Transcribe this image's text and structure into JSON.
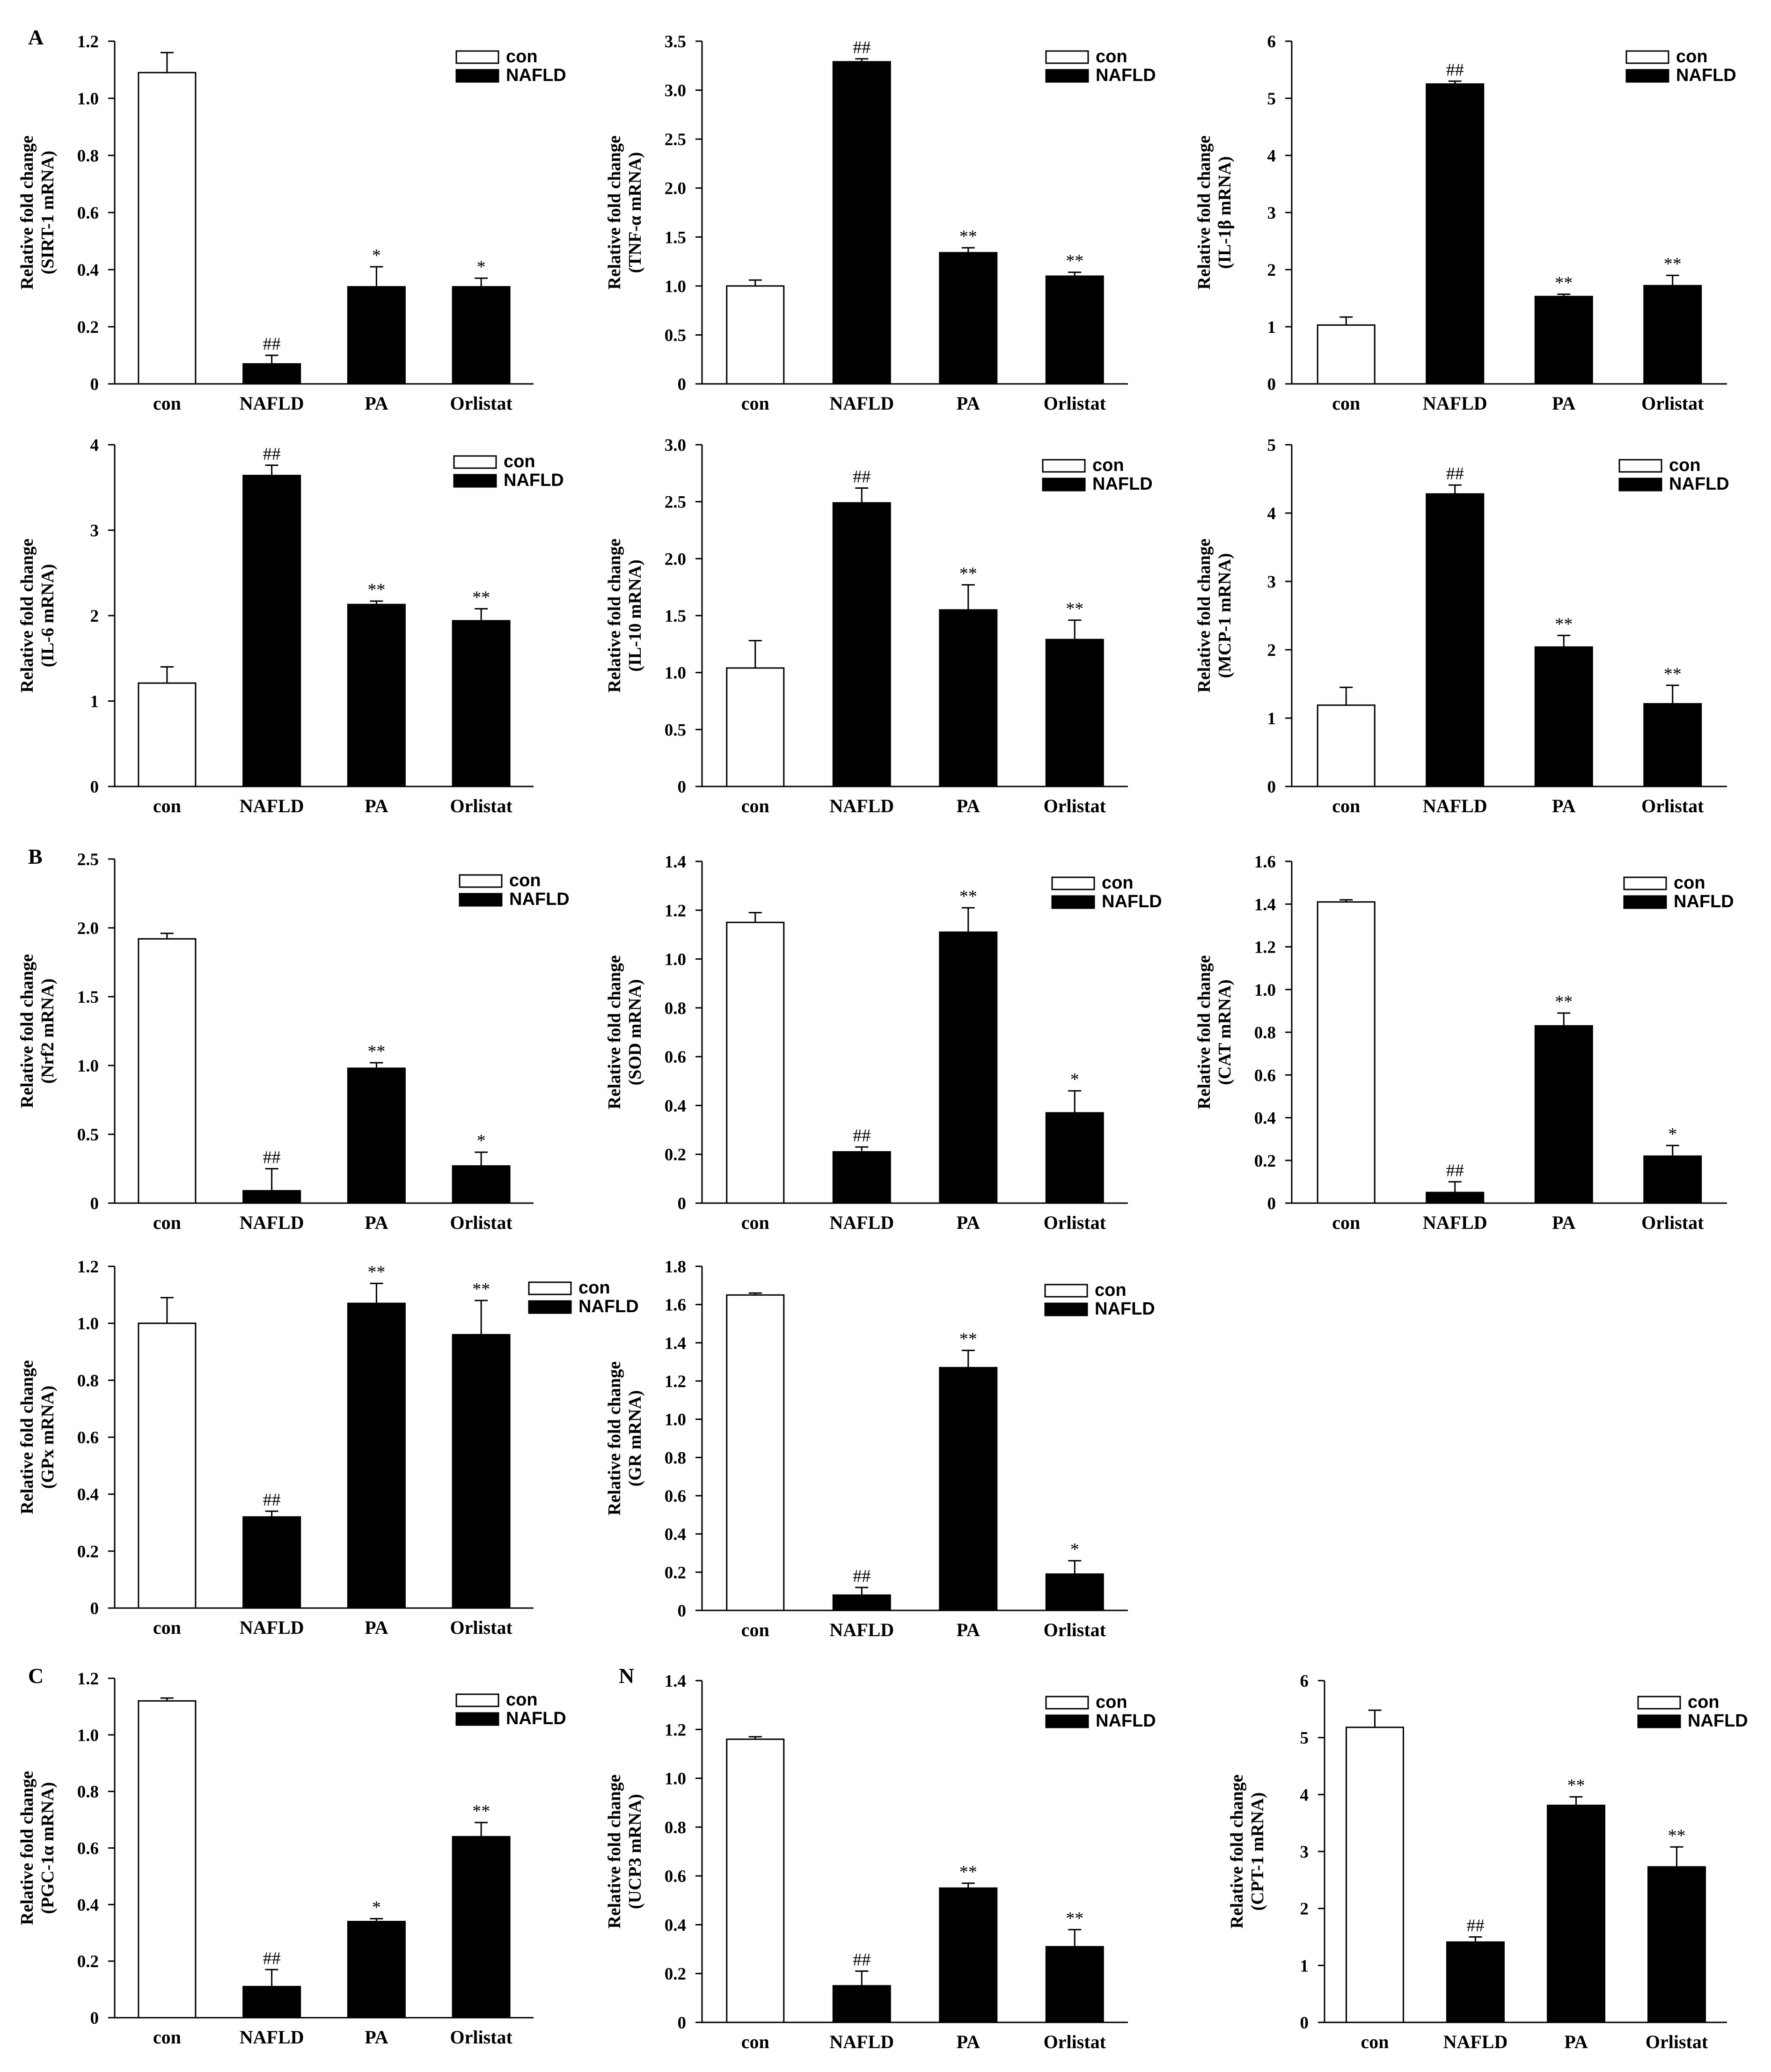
{
  "panel_letters": [
    "A",
    "B",
    "C",
    "N"
  ],
  "legend": {
    "control": "con",
    "disease": "NAFLD"
  },
  "colors": {
    "control_fill": "#ffffff",
    "treated_fill": "#000000",
    "stroke": "#000000"
  },
  "chart_data": [
    {
      "type": "bar",
      "title": "",
      "xlabel": "",
      "ylabel": [
        "Relative fold change",
        "(SIRT-1 mRNA)"
      ],
      "categories": [
        "con",
        "NAFLD",
        "PA",
        "Orlistat"
      ],
      "values": [
        1.09,
        0.07,
        0.34,
        0.34
      ],
      "errors": [
        0.07,
        0.03,
        0.07,
        0.03
      ],
      "significance": [
        "",
        "##",
        "*",
        "*"
      ],
      "ylim": [
        0,
        1.2
      ],
      "yticks": [
        "0",
        "0.2",
        "0.4",
        "0.6",
        "0.8",
        "1.0",
        "1.2"
      ]
    },
    {
      "type": "bar",
      "title": "",
      "xlabel": "",
      "ylabel": [
        "Relative fold change",
        "(TNF-α mRNA)"
      ],
      "categories": [
        "con",
        "NAFLD",
        "PA",
        "Orlistat"
      ],
      "values": [
        1.0,
        3.29,
        1.34,
        1.1
      ],
      "errors": [
        0.06,
        0.03,
        0.05,
        0.04
      ],
      "significance": [
        "",
        "##",
        "**",
        "**"
      ],
      "ylim": [
        0,
        3.5
      ],
      "yticks": [
        "0",
        "0.5",
        "1.0",
        "1.5",
        "2.0",
        "2.5",
        "3.0",
        "3.5"
      ]
    },
    {
      "type": "bar",
      "title": "",
      "xlabel": "",
      "ylabel": [
        "Relative fold change",
        "(IL-1β mRNA)"
      ],
      "categories": [
        "con",
        "NAFLD",
        "PA",
        "Orlistat"
      ],
      "values": [
        1.03,
        5.25,
        1.53,
        1.72
      ],
      "errors": [
        0.14,
        0.05,
        0.04,
        0.18
      ],
      "significance": [
        "",
        "##",
        "**",
        "**"
      ],
      "ylim": [
        0,
        6
      ],
      "yticks": [
        "0",
        "1",
        "2",
        "3",
        "4",
        "5",
        "6"
      ]
    },
    {
      "type": "bar",
      "title": "",
      "xlabel": "",
      "ylabel": [
        "Relative fold change",
        "(IL-6 mRNA)"
      ],
      "categories": [
        "con",
        "NAFLD",
        "PA",
        "Orlistat"
      ],
      "values": [
        1.21,
        3.64,
        2.13,
        1.94
      ],
      "errors": [
        0.19,
        0.12,
        0.04,
        0.14
      ],
      "significance": [
        "",
        "##",
        "**",
        "**"
      ],
      "ylim": [
        0,
        4
      ],
      "yticks": [
        "0",
        "1",
        "2",
        "3",
        "4"
      ]
    },
    {
      "type": "bar",
      "title": "",
      "xlabel": "",
      "ylabel": [
        "Relative fold change",
        "(IL-10 mRNA)"
      ],
      "categories": [
        "con",
        "NAFLD",
        "PA",
        "Orlistat"
      ],
      "values": [
        1.04,
        2.49,
        1.55,
        1.29
      ],
      "errors": [
        0.24,
        0.13,
        0.22,
        0.17
      ],
      "significance": [
        "",
        "##",
        "**",
        "**"
      ],
      "ylim": [
        0,
        3.0
      ],
      "yticks": [
        "0",
        "0.5",
        "1.0",
        "1.5",
        "2.0",
        "2.5",
        "3.0"
      ]
    },
    {
      "type": "bar",
      "title": "",
      "xlabel": "",
      "ylabel": [
        "Relative fold change",
        "(MCP-1 mRNA)"
      ],
      "categories": [
        "con",
        "NAFLD",
        "PA",
        "Orlistat"
      ],
      "values": [
        1.19,
        4.28,
        2.04,
        1.21
      ],
      "errors": [
        0.26,
        0.13,
        0.17,
        0.27
      ],
      "significance": [
        "",
        "##",
        "**",
        "**"
      ],
      "ylim": [
        0,
        5
      ],
      "yticks": [
        "0",
        "1",
        "2",
        "3",
        "4",
        "5"
      ]
    },
    {
      "type": "bar",
      "title": "",
      "xlabel": "",
      "ylabel": [
        "Relative fold change",
        "(Nrf2 mRNA)"
      ],
      "categories": [
        "con",
        "NAFLD",
        "PA",
        "Orlistat"
      ],
      "values": [
        1.92,
        0.09,
        0.98,
        0.27
      ],
      "errors": [
        0.04,
        0.16,
        0.04,
        0.1
      ],
      "significance": [
        "",
        "##",
        "**",
        "*"
      ],
      "ylim": [
        0,
        2.5
      ],
      "yticks": [
        "0",
        "0.5",
        "1.0",
        "1.5",
        "2.0",
        "2.5"
      ]
    },
    {
      "type": "bar",
      "title": "",
      "xlabel": "",
      "ylabel": [
        "Relative fold change",
        "(SOD mRNA)"
      ],
      "categories": [
        "con",
        "NAFLD",
        "PA",
        "Orlistat"
      ],
      "values": [
        1.15,
        0.21,
        1.11,
        0.37
      ],
      "errors": [
        0.04,
        0.02,
        0.1,
        0.09
      ],
      "significance": [
        "",
        "##",
        "**",
        "*"
      ],
      "ylim": [
        0,
        1.4
      ],
      "yticks": [
        "0",
        "0.2",
        "0.4",
        "0.6",
        "0.8",
        "1.0",
        "1.2",
        "1.4"
      ]
    },
    {
      "type": "bar",
      "title": "",
      "xlabel": "",
      "ylabel": [
        "Relative fold change",
        "(CAT mRNA)"
      ],
      "categories": [
        "con",
        "NAFLD",
        "PA",
        "Orlistat"
      ],
      "values": [
        1.41,
        0.05,
        0.83,
        0.22
      ],
      "errors": [
        0.01,
        0.05,
        0.06,
        0.05
      ],
      "significance": [
        "",
        "##",
        "**",
        "*"
      ],
      "ylim": [
        0,
        1.6
      ],
      "yticks": [
        "0",
        "0.2",
        "0.4",
        "0.6",
        "0.8",
        "1.0",
        "1.2",
        "1.4",
        "1.6"
      ]
    },
    {
      "type": "bar",
      "title": "",
      "xlabel": "",
      "ylabel": [
        "Relative fold change",
        "(GPx mRNA)"
      ],
      "categories": [
        "con",
        "NAFLD",
        "PA",
        "Orlistat"
      ],
      "values": [
        1.0,
        0.32,
        1.07,
        0.96
      ],
      "errors": [
        0.09,
        0.02,
        0.07,
        0.12
      ],
      "significance": [
        "",
        "##",
        "**",
        "**"
      ],
      "ylim": [
        0,
        1.2
      ],
      "yticks": [
        "0",
        "0.2",
        "0.4",
        "0.6",
        "0.8",
        "1.0",
        "1.2"
      ]
    },
    {
      "type": "bar",
      "title": "",
      "xlabel": "",
      "ylabel": [
        "Relative fold change",
        "(GR mRNA)"
      ],
      "categories": [
        "con",
        "NAFLD",
        "PA",
        "Orlistat"
      ],
      "values": [
        1.65,
        0.08,
        1.27,
        0.19
      ],
      "errors": [
        0.01,
        0.04,
        0.09,
        0.07
      ],
      "significance": [
        "",
        "##",
        "**",
        "*"
      ],
      "ylim": [
        0,
        1.8
      ],
      "yticks": [
        "0",
        "0.2",
        "0.4",
        "0.6",
        "0.8",
        "1.0",
        "1.2",
        "1.4",
        "1.6",
        "1.8"
      ]
    },
    {
      "type": "bar",
      "title": "",
      "xlabel": "",
      "ylabel": [
        "Relative fold change",
        "(PGC-1α mRNA)"
      ],
      "categories": [
        "con",
        "NAFLD",
        "PA",
        "Orlistat"
      ],
      "values": [
        1.12,
        0.11,
        0.34,
        0.64
      ],
      "errors": [
        0.01,
        0.06,
        0.01,
        0.05
      ],
      "significance": [
        "",
        "##",
        "*",
        "**"
      ],
      "ylim": [
        0,
        1.2
      ],
      "yticks": [
        "0",
        "0.2",
        "0.4",
        "0.6",
        "0.8",
        "1.0",
        "1.2"
      ]
    },
    {
      "type": "bar",
      "title": "",
      "xlabel": "",
      "ylabel": [
        "Relative fold change",
        "(UCP3 mRNA)"
      ],
      "categories": [
        "con",
        "NAFLD",
        "PA",
        "Orlistat"
      ],
      "values": [
        1.16,
        0.15,
        0.55,
        0.31
      ],
      "errors": [
        0.01,
        0.06,
        0.02,
        0.07
      ],
      "significance": [
        "",
        "##",
        "**",
        "**"
      ],
      "ylim": [
        0,
        1.4
      ],
      "yticks": [
        "0",
        "0.2",
        "0.4",
        "0.6",
        "0.8",
        "1.0",
        "1.2",
        "1.4"
      ]
    },
    {
      "type": "bar",
      "title": "",
      "xlabel": "",
      "ylabel": [
        "Relative fold change",
        "(CPT-1 mRNA)"
      ],
      "categories": [
        "con",
        "NAFLD",
        "PA",
        "Orlistat"
      ],
      "values": [
        5.18,
        1.41,
        3.81,
        2.73
      ],
      "errors": [
        0.3,
        0.09,
        0.15,
        0.35
      ],
      "significance": [
        "",
        "##",
        "**",
        "**"
      ],
      "ylim": [
        0,
        6
      ],
      "yticks": [
        "0",
        "1",
        "2",
        "3",
        "4",
        "5",
        "6"
      ]
    }
  ]
}
